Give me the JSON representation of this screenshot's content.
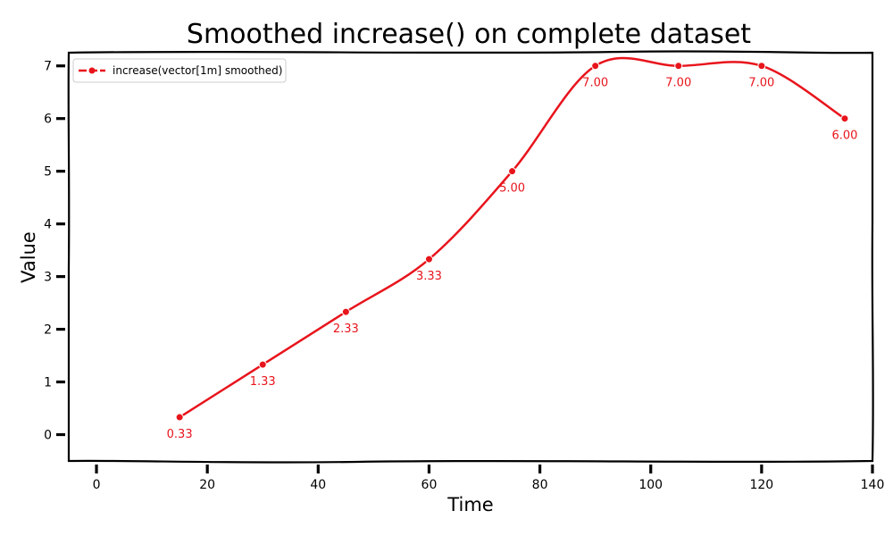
{
  "chart_data": {
    "type": "line",
    "title": "Smoothed increase() on complete dataset",
    "xlabel": "Time",
    "ylabel": "Value",
    "xlim": [
      -5,
      140
    ],
    "ylim": [
      -0.5,
      7.25
    ],
    "xticks": [
      0,
      20,
      40,
      60,
      80,
      100,
      120,
      140
    ],
    "yticks": [
      0,
      1,
      2,
      3,
      4,
      5,
      6,
      7
    ],
    "grid": false,
    "legend": "top-left",
    "series": [
      {
        "name": "increase(vector[1m] smoothed)",
        "color": "#e8141c",
        "x": [
          15,
          30,
          45,
          60,
          75,
          90,
          105,
          120,
          135
        ],
        "y": [
          0.33,
          1.33,
          2.33,
          3.33,
          5.0,
          7.0,
          7.0,
          7.0,
          6.0
        ],
        "labels": [
          "0.33",
          "1.33",
          "2.33",
          "3.33",
          "5.00",
          "7.00",
          "7.00",
          "7.00",
          "6.00"
        ]
      }
    ]
  }
}
